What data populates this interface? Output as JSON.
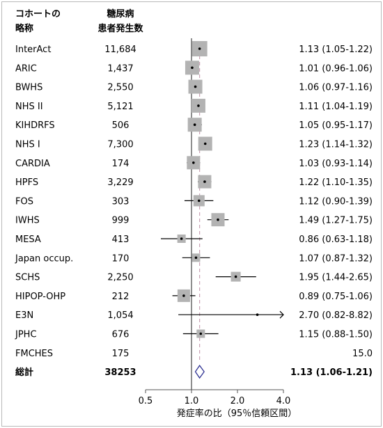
{
  "chart_data": {
    "type": "forest",
    "title": "",
    "headers": {
      "cohort": [
        "コホートの",
        "略称"
      ],
      "cases": [
        "糖尿病",
        "患者発生数"
      ]
    },
    "xlabel": "発症率の比（95％信頼区間）",
    "x_scale": "log",
    "xlim": [
      0.5,
      4.0
    ],
    "x_ticks": [
      0.5,
      1.0,
      2.0,
      4.0
    ],
    "x_tick_labels": [
      "0.5",
      "1.0",
      "2.0",
      "4.0"
    ],
    "reference_line": 1.0,
    "pooled_dashed_line": 1.13,
    "colors": {
      "box": "#b3b3b3",
      "diamond": "#2e3192",
      "dashed": "#c9a0b4",
      "axis": "#555555"
    },
    "rows": [
      {
        "name": "InterAct",
        "cases": "11,684",
        "rr": 1.13,
        "lo": 1.05,
        "hi": 1.22,
        "label": "1.13 (1.05-1.22)",
        "box": 22
      },
      {
        "name": "ARIC",
        "cases": "1,437",
        "rr": 1.01,
        "lo": 0.96,
        "hi": 1.06,
        "label": "1.01 (0.96-1.06)",
        "box": 20
      },
      {
        "name": "BWHS",
        "cases": "2,550",
        "rr": 1.06,
        "lo": 0.97,
        "hi": 1.16,
        "label": "1.06 (0.97-1.16)",
        "box": 20
      },
      {
        "name": "NHS II",
        "cases": "5,121",
        "rr": 1.11,
        "lo": 1.04,
        "hi": 1.19,
        "label": "1.11 (1.04-1.19)",
        "box": 20
      },
      {
        "name": "KIHDRFS",
        "cases": "506",
        "rr": 1.05,
        "lo": 0.95,
        "hi": 1.17,
        "label": "1.05 (0.95-1.17)",
        "box": 20
      },
      {
        "name": "NHS I",
        "cases": "7,300",
        "rr": 1.23,
        "lo": 1.14,
        "hi": 1.32,
        "label": "1.23 (1.14-1.32)",
        "box": 20
      },
      {
        "name": "CARDIA",
        "cases": "174",
        "rr": 1.03,
        "lo": 0.93,
        "hi": 1.14,
        "label": "1.03 (0.93-1.14)",
        "box": 19
      },
      {
        "name": "HPFS",
        "cases": "3,229",
        "rr": 1.22,
        "lo": 1.1,
        "hi": 1.35,
        "label": "1.22 (1.10-1.35)",
        "box": 19
      },
      {
        "name": "FOS",
        "cases": "303",
        "rr": 1.12,
        "lo": 0.9,
        "hi": 1.39,
        "label": "1.12 (0.90-1.39)",
        "box": 16
      },
      {
        "name": "IWHS",
        "cases": "999",
        "rr": 1.49,
        "lo": 1.27,
        "hi": 1.75,
        "label": "1.49 (1.27-1.75)",
        "box": 19
      },
      {
        "name": "MESA",
        "cases": "413",
        "rr": 0.86,
        "lo": 0.63,
        "hi": 1.18,
        "label": "0.86 (0.63-1.18)",
        "box": 12
      },
      {
        "name": "Japan occup.",
        "cases": "170",
        "rr": 1.07,
        "lo": 0.87,
        "hi": 1.32,
        "label": "1.07 (0.87-1.32)",
        "box": 12
      },
      {
        "name": "SCHS",
        "cases": "2,250",
        "rr": 1.95,
        "lo": 1.44,
        "hi": 2.65,
        "label": "1.95 (1.44-2.65)",
        "box": 14
      },
      {
        "name": "HIPOP-OHP",
        "cases": "212",
        "rr": 0.89,
        "lo": 0.75,
        "hi": 1.06,
        "label": "0.89 (0.75-1.06)",
        "box": 18
      },
      {
        "name": "E3N",
        "cases": "1,054",
        "rr": 2.7,
        "lo": 0.82,
        "hi": 8.82,
        "label": "2.70 (0.82-8.82)",
        "box": 0,
        "arrow": true
      },
      {
        "name": "JPHC",
        "cases": "676",
        "rr": 1.15,
        "lo": 0.88,
        "hi": 1.5,
        "label": "1.15 (0.88-1.50)",
        "box": 12
      },
      {
        "name": "FMCHES",
        "cases": "175",
        "rr": null,
        "lo": null,
        "hi": null,
        "label": "15.0",
        "box": 0
      }
    ],
    "total": {
      "name": "総計",
      "cases": "38253",
      "rr": 1.13,
      "lo": 1.06,
      "hi": 1.21,
      "label": "1.13 (1.06-1.21)"
    }
  }
}
